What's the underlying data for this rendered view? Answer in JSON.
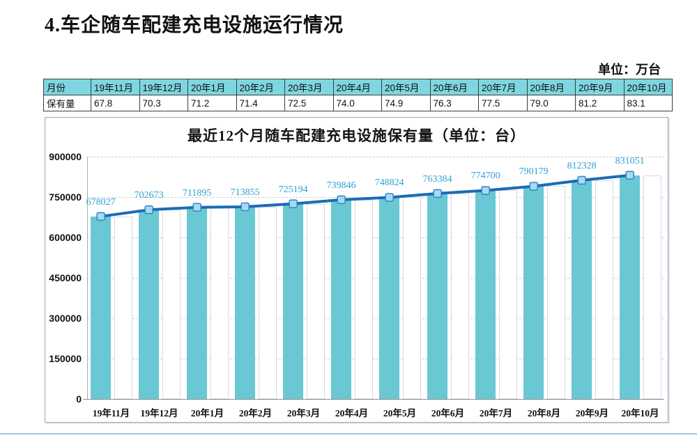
{
  "header": {
    "title": "4.车企随车配建充电设施运行情况",
    "unit_label": "单位：万台"
  },
  "table": {
    "corner_label": "月份",
    "row_label": "保有量",
    "months": [
      "19年11月",
      "19年12月",
      "20年1月",
      "20年2月",
      "20年3月",
      "20年4月",
      "20年5月",
      "20年6月",
      "20年7月",
      "20年8月",
      "20年9月",
      "20年10月"
    ],
    "values": [
      "67.8",
      "70.3",
      "71.2",
      "71.4",
      "72.5",
      "74.0",
      "74.9",
      "76.3",
      "77.5",
      "79.0",
      "81.2",
      "83.1"
    ]
  },
  "chart_data": {
    "type": "bar",
    "line_overlay": true,
    "title": "最近12个月随车配建充电设施保有量（单位：台）",
    "categories": [
      "19年11月",
      "19年12月",
      "20年1月",
      "20年2月",
      "20年3月",
      "20年4月",
      "20年5月",
      "20年6月",
      "20年7月",
      "20年8月",
      "20年9月",
      "20年10月"
    ],
    "values": [
      678027,
      702673,
      711895,
      713855,
      725194,
      739846,
      748824,
      763384,
      774700,
      790179,
      812328,
      831051
    ],
    "ylim": [
      0,
      900000
    ],
    "ytick_step": 150000,
    "yticks": [
      "0",
      "150000",
      "300000",
      "450000",
      "600000",
      "750000",
      "900000"
    ],
    "grid": "horizontal-dashed",
    "legend": "none"
  },
  "colors": {
    "bar_fill": "#69C8D3",
    "shadow_bar_fill": "#FFFFFF",
    "shadow_bar_border": "#D9D5E8",
    "line": "#1B6BB4",
    "marker_fill": "#A9D9F0",
    "marker_border": "#2E86C1",
    "data_label": "#2E9FD4",
    "table_header_bg": "#7ED7E0",
    "footer_line": "#9DC3E6"
  }
}
